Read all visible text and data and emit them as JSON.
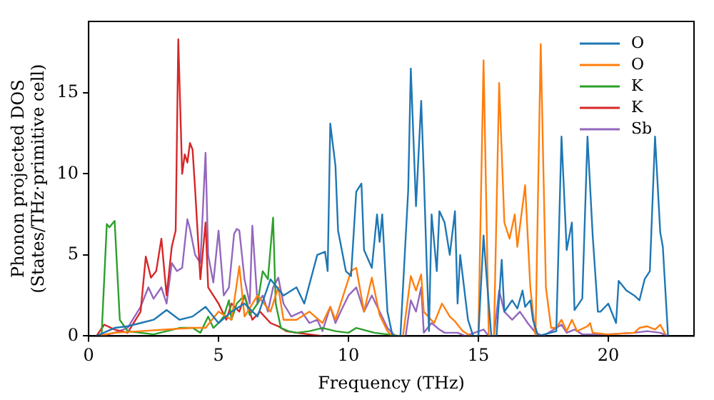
{
  "chart_data": {
    "type": "line",
    "xlabel": "Frequency (THz)",
    "ylabel": "Phonon projected DOS\n(States/THz·primitive cell)",
    "xlim": [
      0,
      23.3
    ],
    "ylim": [
      0,
      19.4
    ],
    "xticks": [
      0,
      5,
      10,
      15,
      20
    ],
    "yticks": [
      0,
      5,
      10,
      15
    ],
    "grid": false,
    "legend": "top right",
    "marker": "none",
    "line_style": "solid",
    "series": [
      {
        "name": "O",
        "color": "#1f77b4",
        "x": [
          0.3,
          1,
          1.5,
          2,
          2.5,
          3,
          3.5,
          4,
          4.5,
          5,
          5.5,
          6,
          6.5,
          7,
          7.5,
          8,
          8.3,
          8.8,
          9.1,
          9.2,
          9.3,
          9.5,
          9.6,
          9.9,
          10.1,
          10.3,
          10.5,
          10.6,
          10.9,
          11.1,
          11.2,
          11.3,
          11.5,
          11.7,
          12,
          12.3,
          12.4,
          12.6,
          12.8,
          12.9,
          13,
          13.1,
          13.2,
          13.4,
          13.5,
          13.7,
          13.9,
          14.1,
          14.2,
          14.3,
          14.6,
          14.8,
          15,
          15.2,
          15.3,
          15.5,
          15.7,
          15.9,
          16,
          16.3,
          16.5,
          16.7,
          16.8,
          17,
          17.1,
          17.3,
          18,
          18.2,
          18.4,
          18.6,
          18.7,
          19,
          19.2,
          19.4,
          19.6,
          19.7,
          20,
          20.3,
          20.4,
          20.7,
          21,
          21.2,
          21.4,
          21.6,
          21.8,
          22,
          22.1,
          22.3
        ],
        "values": [
          0,
          0.5,
          0.6,
          0.8,
          1,
          1.6,
          1,
          1.2,
          1.8,
          0.8,
          1.5,
          2,
          1.2,
          3.5,
          2.5,
          3,
          2,
          5,
          5.2,
          4,
          13.1,
          10.5,
          6.5,
          4,
          3.7,
          8.9,
          9.4,
          5.3,
          4.2,
          7.5,
          5.8,
          7.5,
          1.5,
          0,
          0,
          9,
          16.5,
          8,
          14.5,
          10,
          5,
          0.3,
          7.5,
          4,
          7.7,
          7,
          5,
          7.7,
          2,
          5,
          1,
          0,
          0,
          6.2,
          4,
          0,
          0,
          4.7,
          1.5,
          2.2,
          1.7,
          2.8,
          1.8,
          2.2,
          1,
          0,
          0.3,
          12.3,
          5.3,
          7,
          1.6,
          2.3,
          12.3,
          6.2,
          1.5,
          1.5,
          2,
          0.8,
          3.4,
          2.8,
          2.5,
          2.2,
          3.5,
          4,
          12.3,
          6.4,
          5.5,
          0
        ]
      },
      {
        "name": "O",
        "color": "#ff7f0e",
        "x": [
          0.3,
          1,
          2,
          3,
          4,
          4.5,
          5,
          5.5,
          5.8,
          6,
          6.5,
          7,
          7.3,
          7.5,
          8,
          8.5,
          9,
          9.3,
          9.5,
          9.8,
          10.1,
          10.3,
          10.6,
          10.9,
          11.2,
          11.5,
          11.7,
          12.1,
          12.4,
          12.6,
          12.8,
          12.9,
          13.3,
          13.6,
          13.9,
          14.1,
          14.4,
          14.7,
          15,
          15.2,
          15.4,
          15.6,
          15.8,
          16,
          16.2,
          16.4,
          16.5,
          16.8,
          17,
          17.2,
          17.4,
          17.6,
          17.8,
          18,
          18.2,
          18.4,
          18.6,
          18.8,
          19.2,
          19.3,
          19.4,
          20,
          21,
          21.2,
          21.5,
          21.8,
          22,
          22.2
        ],
        "values": [
          0,
          0.2,
          0.3,
          0.4,
          0.5,
          0.5,
          1.5,
          1,
          4.3,
          1.2,
          2.5,
          1.5,
          3,
          1,
          1,
          1.5,
          0.8,
          1.8,
          1,
          2.5,
          4,
          4.2,
          1.5,
          3.6,
          1.3,
          0.3,
          0,
          0,
          3.7,
          2.8,
          3.8,
          1.5,
          0.8,
          2,
          1.2,
          0.9,
          0.3,
          0,
          0,
          17,
          0,
          0,
          15.6,
          7,
          6,
          7.5,
          5.5,
          9.3,
          3,
          0,
          18,
          3,
          0.5,
          0.5,
          1,
          0.3,
          1,
          0.3,
          0.6,
          0.8,
          0.2,
          0.1,
          0.2,
          0.5,
          0.6,
          0.4,
          0.7,
          0.1
        ]
      },
      {
        "name": "K",
        "color": "#2ca02c",
        "x": [
          0.5,
          0.7,
          0.8,
          1,
          1.2,
          1.5,
          2,
          2.5,
          3,
          3.5,
          4,
          4.3,
          4.6,
          4.8,
          5,
          5.2,
          5.4,
          5.5,
          5.7,
          6,
          6.2,
          6.5,
          6.7,
          6.9,
          7.1,
          7.2,
          7.4,
          7.7,
          8,
          8.5,
          9,
          9.5,
          10,
          10.3,
          11,
          11.5,
          12
        ],
        "values": [
          0.1,
          6.9,
          6.7,
          7.1,
          1,
          0.3,
          0.2,
          0.1,
          0.3,
          0.5,
          0.5,
          0.2,
          1.2,
          0.5,
          0.8,
          1.2,
          2.2,
          1,
          2,
          2.5,
          1.3,
          2,
          4,
          3.5,
          7.3,
          2,
          0.5,
          0.3,
          0.2,
          0.3,
          0.5,
          0.3,
          0.2,
          0.5,
          0.2,
          0.1,
          0
        ]
      },
      {
        "name": "K",
        "color": "#d62728",
        "x": [
          0.3,
          0.6,
          1,
          1.5,
          2,
          2.2,
          2.4,
          2.6,
          2.8,
          3,
          3.2,
          3.35,
          3.45,
          3.6,
          3.7,
          3.8,
          3.9,
          4,
          4.1,
          4.3,
          4.5,
          4.6,
          4.8,
          5,
          5.3,
          5.5,
          5.8,
          6,
          6.3,
          6.6,
          7,
          7.3,
          7.6,
          8,
          8.5,
          9
        ],
        "values": [
          0,
          0.7,
          0.4,
          0.2,
          1.5,
          4.9,
          3.6,
          4,
          6,
          2.5,
          5.5,
          6.5,
          18.3,
          10,
          11.2,
          10.7,
          11.9,
          11.5,
          9,
          3.5,
          7,
          3,
          2.5,
          2,
          1,
          2,
          1.5,
          2.5,
          1,
          1.5,
          0.8,
          0.6,
          0.3,
          0.2,
          0.1,
          0
        ]
      },
      {
        "name": "Sb",
        "color": "#9467bd",
        "x": [
          0.5,
          1,
          1.5,
          2,
          2.3,
          2.5,
          2.8,
          3,
          3.2,
          3.4,
          3.6,
          3.8,
          3.9,
          4.1,
          4.3,
          4.5,
          4.6,
          4.8,
          5,
          5.2,
          5.4,
          5.6,
          5.7,
          5.8,
          6,
          6.2,
          6.3,
          6.5,
          6.7,
          6.9,
          7.1,
          7.3,
          7.5,
          7.8,
          8.2,
          8.5,
          8.8,
          9,
          9.3,
          9.5,
          9.7,
          10,
          10.3,
          10.6,
          10.9,
          11.2,
          11.5,
          11.8,
          12.2,
          12.4,
          12.6,
          12.8,
          12.9,
          13.2,
          13.5,
          13.7,
          14.2,
          14.5,
          15.2,
          15.4,
          15.6,
          15.8,
          16,
          16.3,
          16.6,
          16.9,
          17.2,
          17.5,
          18.2,
          18.4,
          18.7,
          19,
          20,
          21,
          21.5,
          22,
          22.3
        ],
        "values": [
          0,
          0.2,
          0.5,
          1.8,
          3,
          2.3,
          3,
          2,
          4.5,
          4,
          4.2,
          7.2,
          6.6,
          5,
          4.5,
          11.3,
          5,
          3.3,
          6.5,
          2.5,
          3,
          6.3,
          6.6,
          6.5,
          3.5,
          2,
          6.8,
          2,
          2.5,
          1.5,
          3,
          3.6,
          2,
          1.2,
          1.5,
          0.8,
          1,
          0.3,
          1.8,
          0.8,
          1.5,
          2.5,
          3,
          1.5,
          2.5,
          1.5,
          0.5,
          0,
          0,
          2.2,
          1.5,
          3,
          0.2,
          0.8,
          0.4,
          0.2,
          0.2,
          0,
          0.4,
          0,
          0,
          2.8,
          1.5,
          1,
          1.5,
          0.8,
          0.2,
          0,
          0.7,
          0.2,
          0.4,
          0.1,
          0.1,
          0.2,
          0.3,
          0.2,
          0
        ]
      }
    ]
  }
}
